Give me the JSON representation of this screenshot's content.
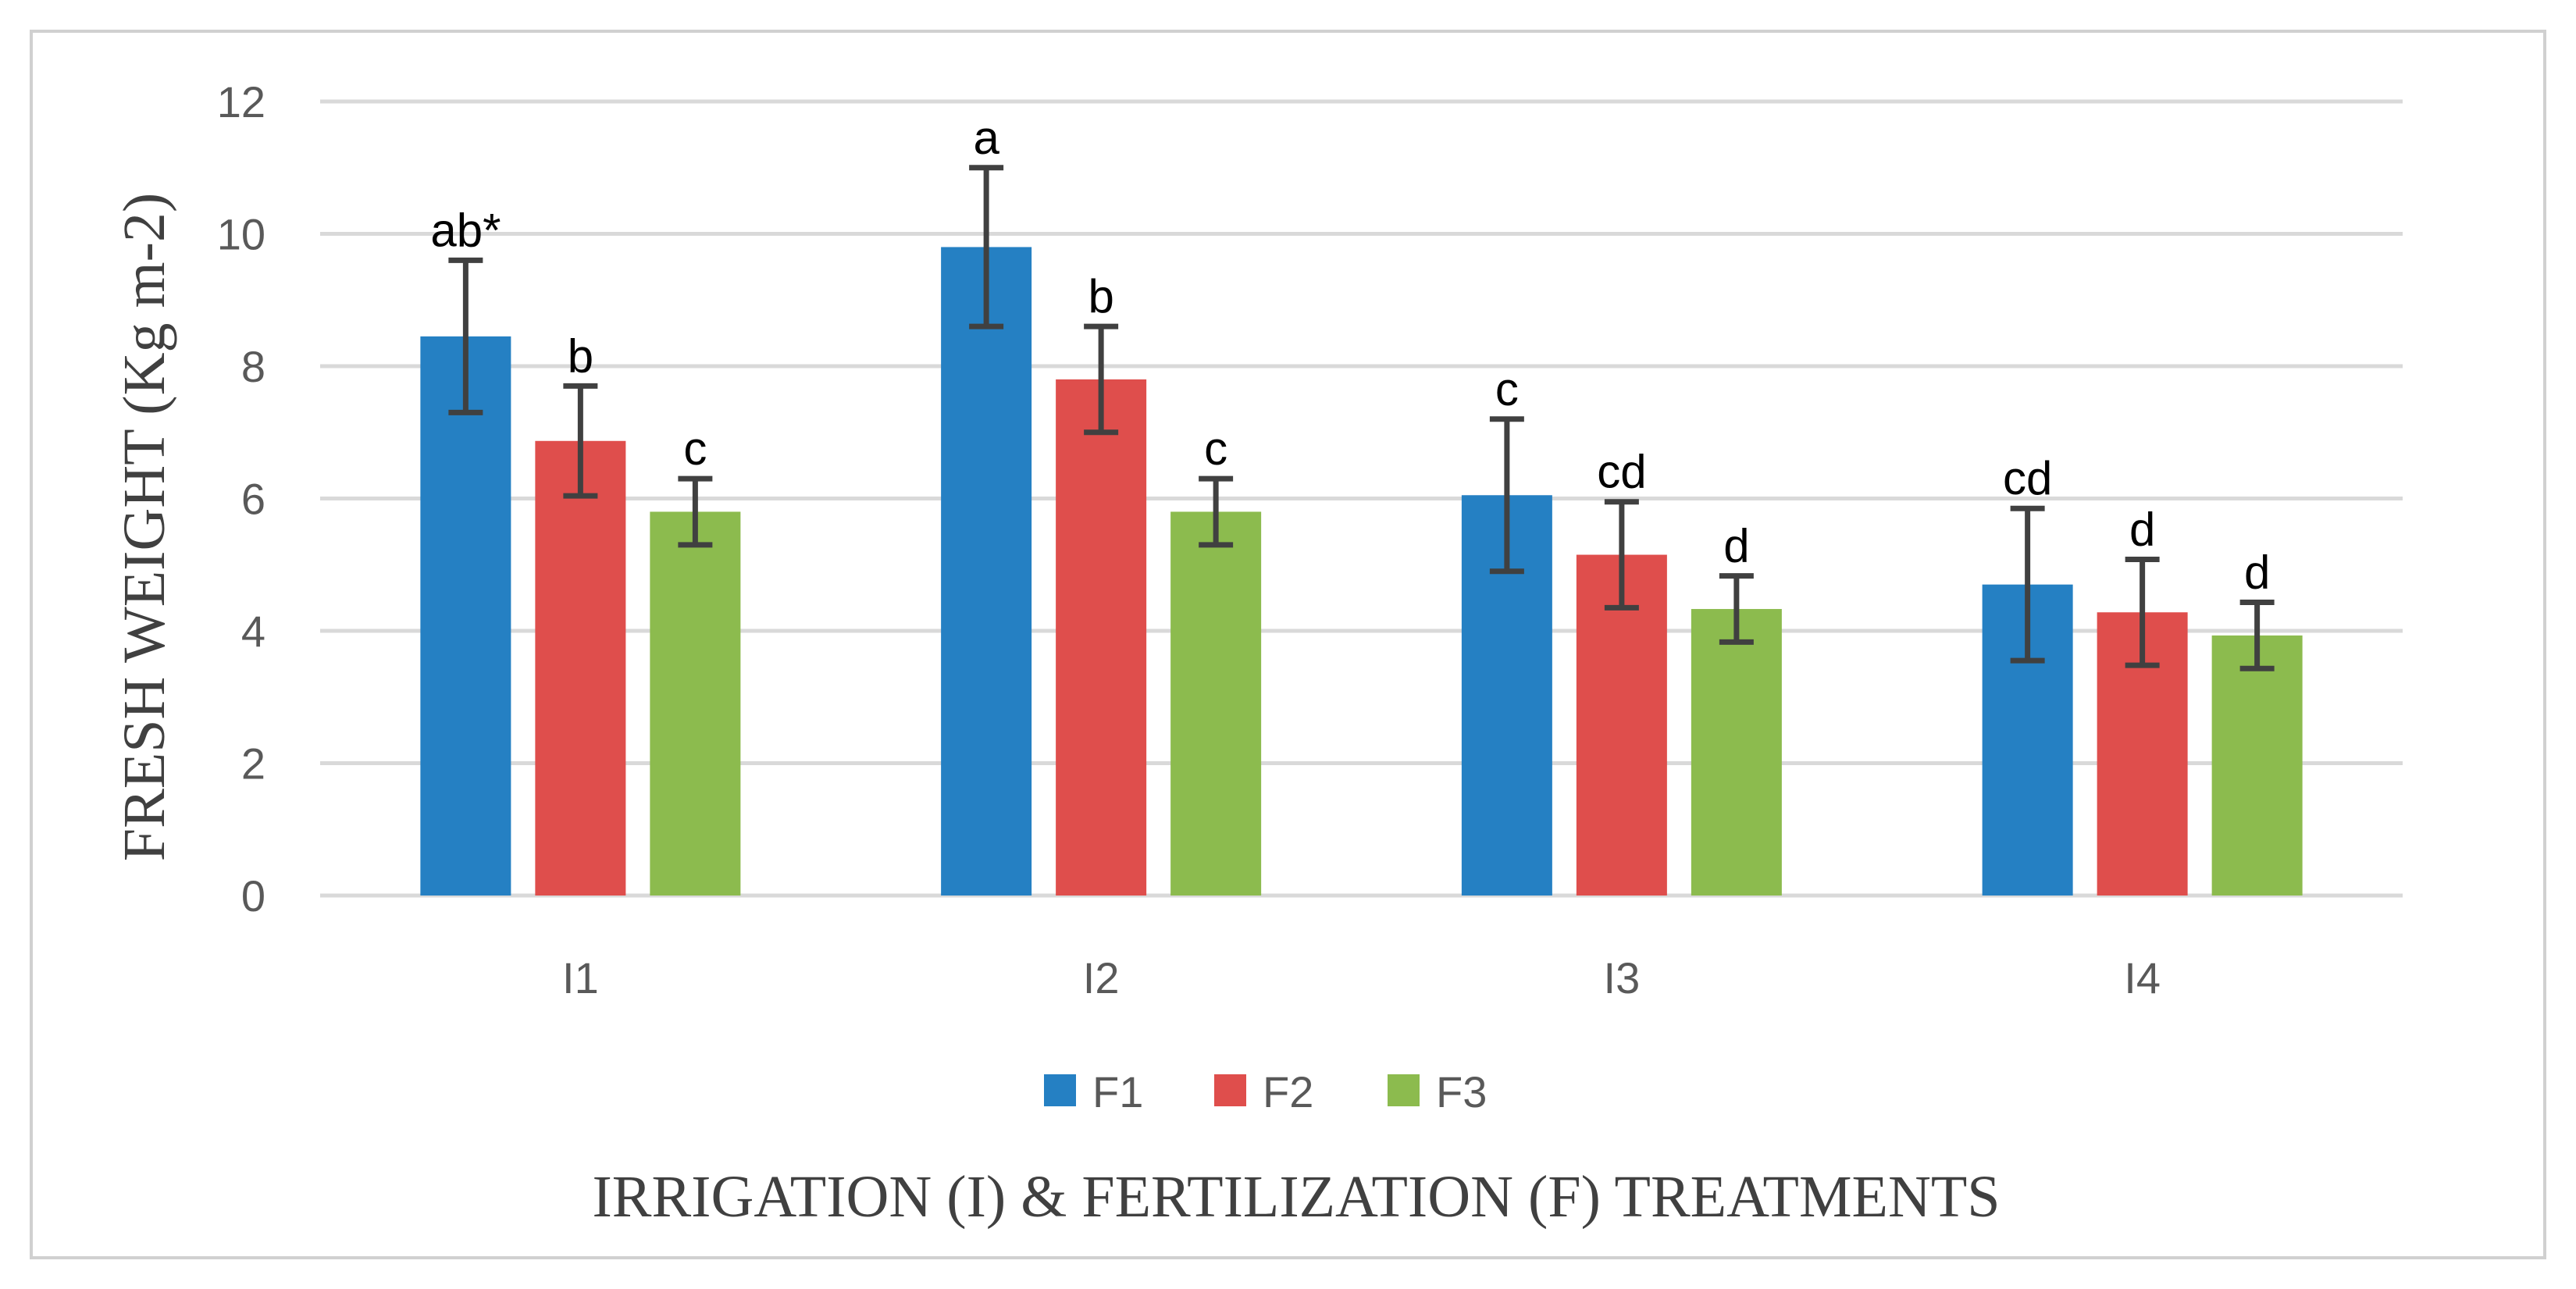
{
  "chart_data": {
    "type": "bar",
    "title": "",
    "xlabel": "IRRIGATION (I) & FERTILIZATION (F) TREATMENTS",
    "ylabel": "FRESH WEIGHT (Kg m-2)",
    "ylim": [
      0,
      12
    ],
    "yticks": [
      0,
      2,
      4,
      6,
      8,
      10,
      12
    ],
    "ytick_labels": [
      "0",
      "2",
      "4",
      "6",
      "8",
      "10",
      "12"
    ],
    "grid": true,
    "legend_position": "bottom",
    "categories": [
      "I1",
      "I2",
      "I3",
      "I4"
    ],
    "series": [
      {
        "name": "F1",
        "color": "#2580c3",
        "values": [
          8.45,
          9.8,
          6.05,
          4.7
        ],
        "errors": [
          1.15,
          1.2,
          1.15,
          1.15
        ],
        "labels": [
          "ab*",
          "a",
          "c",
          "cd"
        ]
      },
      {
        "name": "F2",
        "color": "#df4e4c",
        "values": [
          6.87,
          7.8,
          5.15,
          4.28
        ],
        "errors": [
          0.83,
          0.8,
          0.8,
          0.8
        ],
        "labels": [
          "b",
          "b",
          "cd",
          "d"
        ]
      },
      {
        "name": "F3",
        "color": "#8cbb4e",
        "values": [
          5.8,
          5.8,
          4.33,
          3.93
        ],
        "errors": [
          0.5,
          0.5,
          0.5,
          0.5
        ],
        "labels": [
          "c",
          "c",
          "d",
          "d"
        ]
      }
    ]
  }
}
